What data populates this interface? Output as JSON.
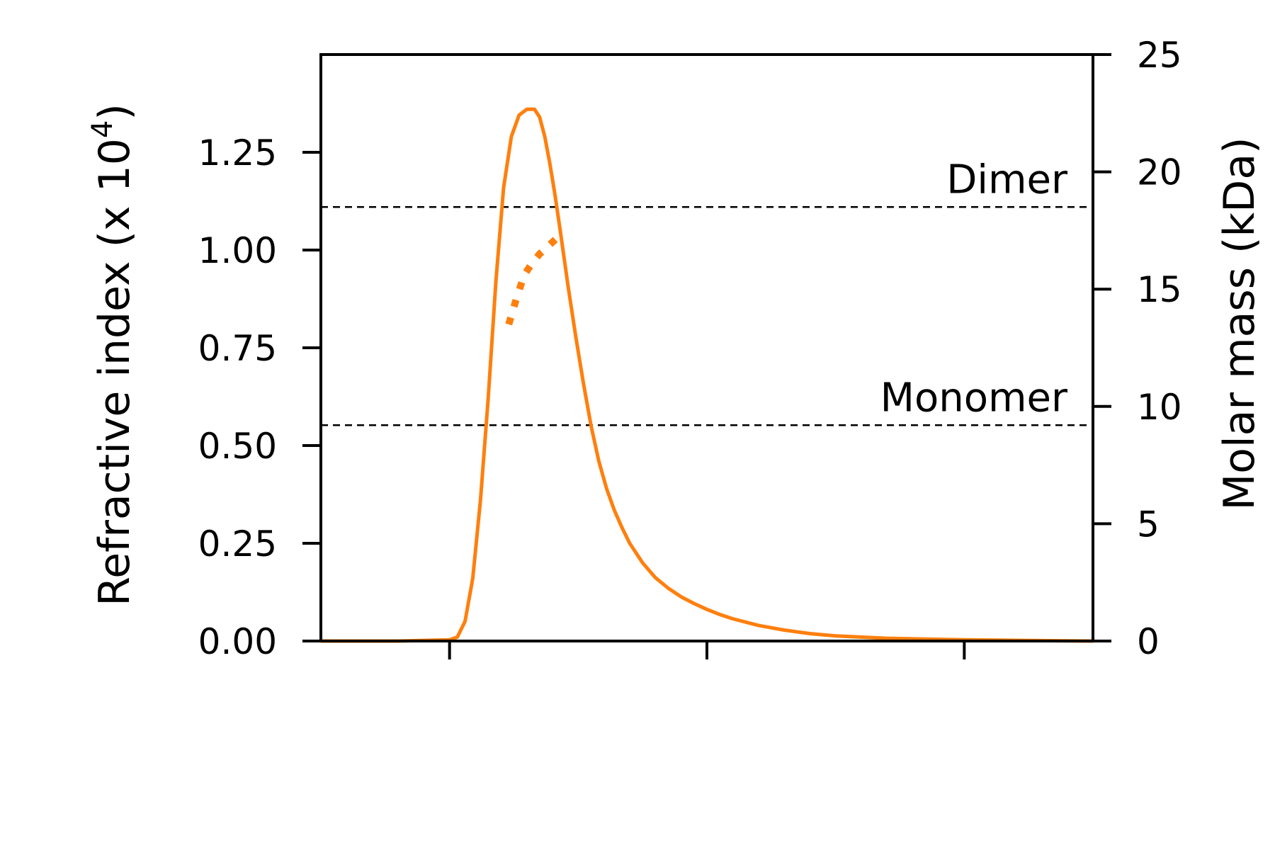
{
  "chart_data": {
    "type": "line",
    "title": "",
    "xlabel": "",
    "ylabel": "Refractive index (x 10",
    "ylabel_superscript": "4",
    "ylabel_suffix": ")",
    "y2label": "Molar mass (kDa)",
    "xlim": [
      0,
      3
    ],
    "ylim": [
      0,
      1.5
    ],
    "y2lim": [
      0,
      25
    ],
    "xticks": [
      0.5,
      1.5,
      2.5
    ],
    "yticks": [
      0,
      0.25,
      0.5,
      0.75,
      1.0,
      1.25
    ],
    "ytick_labels": [
      "0.00",
      "0.25",
      "0.50",
      "0.75",
      "1.00",
      "1.25"
    ],
    "y2ticks": [
      0,
      5,
      10,
      15,
      20,
      25
    ],
    "y2tick_labels": [
      "0",
      "5",
      "10",
      "15",
      "20",
      "25"
    ],
    "grid": false,
    "colors": {
      "series": "#ff7f0e",
      "reference": "#000000"
    },
    "series": [
      {
        "axis": "left",
        "style": "solid",
        "x": [
          0.0,
          0.3,
          0.5,
          0.53,
          0.56,
          0.59,
          0.62,
          0.65,
          0.68,
          0.71,
          0.74,
          0.77,
          0.8,
          0.83,
          0.85,
          0.87,
          0.89,
          0.9,
          0.91,
          0.93,
          0.96,
          0.99,
          1.02,
          1.05,
          1.08,
          1.11,
          1.14,
          1.17,
          1.2,
          1.25,
          1.3,
          1.35,
          1.4,
          1.45,
          1.5,
          1.55,
          1.6,
          1.7,
          1.8,
          1.9,
          2.0,
          2.2,
          2.5,
          2.8,
          3.0
        ],
        "y": [
          0.0,
          0.0,
          0.003,
          0.01,
          0.05,
          0.16,
          0.36,
          0.62,
          0.92,
          1.16,
          1.29,
          1.345,
          1.36,
          1.36,
          1.34,
          1.29,
          1.22,
          1.18,
          1.14,
          1.05,
          0.91,
          0.78,
          0.66,
          0.55,
          0.46,
          0.39,
          0.335,
          0.29,
          0.25,
          0.2,
          0.162,
          0.135,
          0.113,
          0.096,
          0.081,
          0.068,
          0.057,
          0.04,
          0.028,
          0.019,
          0.013,
          0.007,
          0.003,
          0.001,
          0.0
        ]
      },
      {
        "axis": "right",
        "style": "dotted",
        "x": [
          0.73,
          0.76,
          0.79,
          0.82,
          0.85,
          0.88,
          0.91,
          0.93
        ],
        "y": [
          13.5,
          14.6,
          15.6,
          16.1,
          16.5,
          16.8,
          17.1,
          17.3
        ]
      }
    ],
    "reference_lines": [
      {
        "label": "Dimer",
        "y": 18.5,
        "axis": "right",
        "style": "dashed"
      },
      {
        "label": "Monomer",
        "y": 9.2,
        "axis": "right",
        "style": "dashed"
      }
    ]
  }
}
